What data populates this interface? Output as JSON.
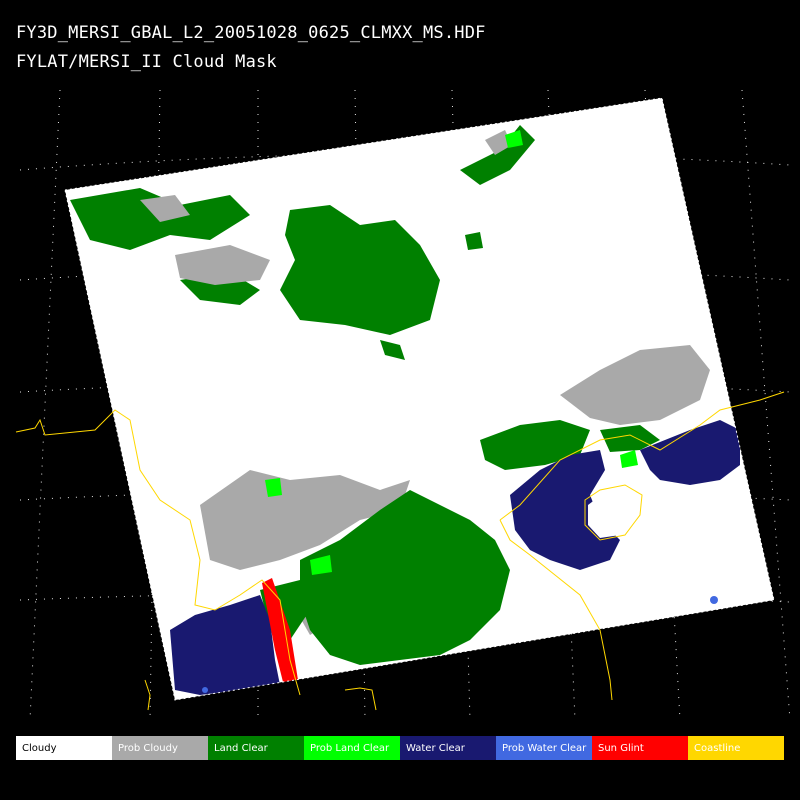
{
  "header": {
    "filename": "FY3D_MERSI_GBAL_L2_20051028_0625_CLMXX_MS.HDF",
    "product": "FYLAT/MERSI_II Cloud Mask"
  },
  "legend": [
    {
      "label": "Cloudy",
      "color": "#ffffff",
      "text_color": "#000000"
    },
    {
      "label": "Prob Cloudy",
      "color": "#a9a9a9",
      "text_color": "#ffffff"
    },
    {
      "label": "Land Clear",
      "color": "#008000",
      "text_color": "#ffffff"
    },
    {
      "label": "Prob Land Clear",
      "color": "#00ff00",
      "text_color": "#ffffff"
    },
    {
      "label": "Water Clear",
      "color": "#191970",
      "text_color": "#ffffff"
    },
    {
      "label": "Prob Water Clear",
      "color": "#4169e1",
      "text_color": "#ffffff"
    },
    {
      "label": "Sun Glint",
      "color": "#ff0000",
      "text_color": "#ffffff"
    },
    {
      "label": "Coastline",
      "color": "#ffd700",
      "text_color": "#ffffff"
    }
  ]
}
